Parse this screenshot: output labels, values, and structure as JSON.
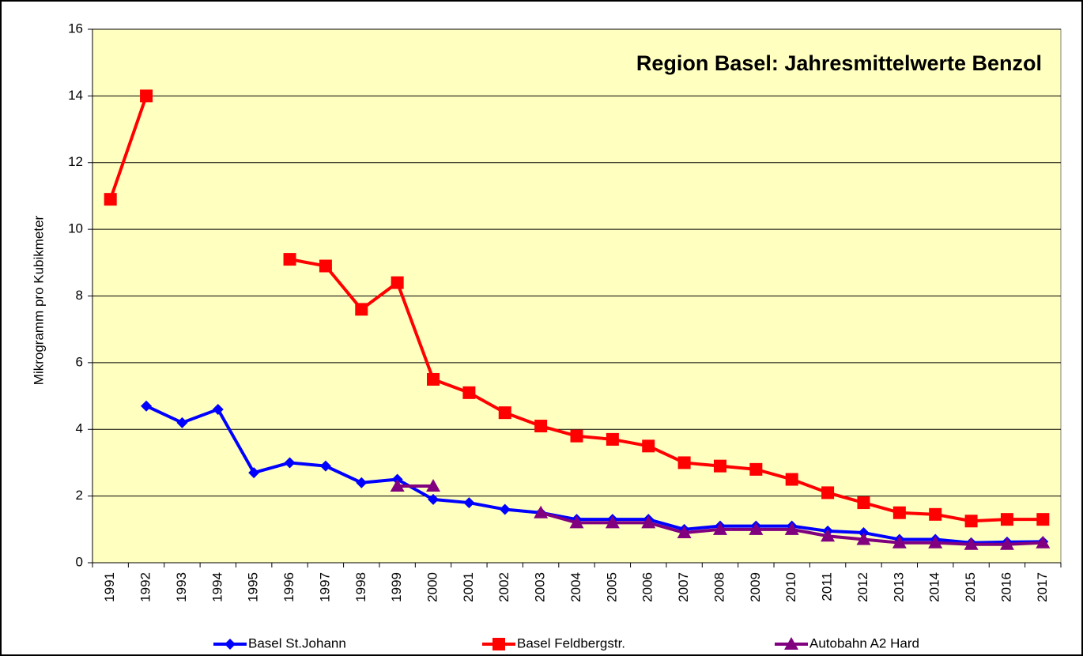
{
  "chart_data": {
    "type": "line",
    "title": "Region Basel: Jahresmittelwerte Benzol",
    "y_label": "Mikrogramm pro Kubikmeter",
    "categories": [
      "1991",
      "1992",
      "1993",
      "1994",
      "1995",
      "1996",
      "1997",
      "1998",
      "1999",
      "2000",
      "2001",
      "2002",
      "2003",
      "2004",
      "2005",
      "2006",
      "2007",
      "2008",
      "2009",
      "2010",
      "2011",
      "2012",
      "2013",
      "2014",
      "2015",
      "2016",
      "2017"
    ],
    "series": [
      {
        "name": "Basel St.Johann",
        "color": "#0000ff",
        "marker": "diamond",
        "values": [
          null,
          4.7,
          4.2,
          4.6,
          2.7,
          3.0,
          2.9,
          2.4,
          2.5,
          1.9,
          1.8,
          1.6,
          1.5,
          1.3,
          1.3,
          1.3,
          1.0,
          1.1,
          1.1,
          1.1,
          0.95,
          0.9,
          0.7,
          0.7,
          0.6,
          0.62,
          0.63
        ]
      },
      {
        "name": "Basel Feldbergstr.",
        "color": "#ff0000",
        "marker": "square",
        "values": [
          10.9,
          14.0,
          null,
          null,
          null,
          9.1,
          8.9,
          7.6,
          8.4,
          5.5,
          5.1,
          4.5,
          4.1,
          3.8,
          3.7,
          3.5,
          3.0,
          2.9,
          2.8,
          2.5,
          2.1,
          1.8,
          1.5,
          1.45,
          1.25,
          1.3,
          1.3
        ]
      },
      {
        "name": "Autobahn A2 Hard",
        "color": "#800080",
        "marker": "triangle",
        "values": [
          null,
          null,
          null,
          null,
          null,
          null,
          null,
          null,
          2.3,
          2.3,
          null,
          null,
          1.5,
          1.2,
          1.2,
          1.2,
          0.9,
          1.0,
          1.0,
          1.0,
          0.8,
          0.7,
          0.6,
          0.6,
          0.55,
          0.55,
          0.6
        ]
      }
    ],
    "ylim": [
      0,
      16
    ],
    "yticks": [
      0,
      2,
      4,
      6,
      8,
      10,
      12,
      14,
      16
    ],
    "grid": true,
    "legend": "bottom"
  }
}
